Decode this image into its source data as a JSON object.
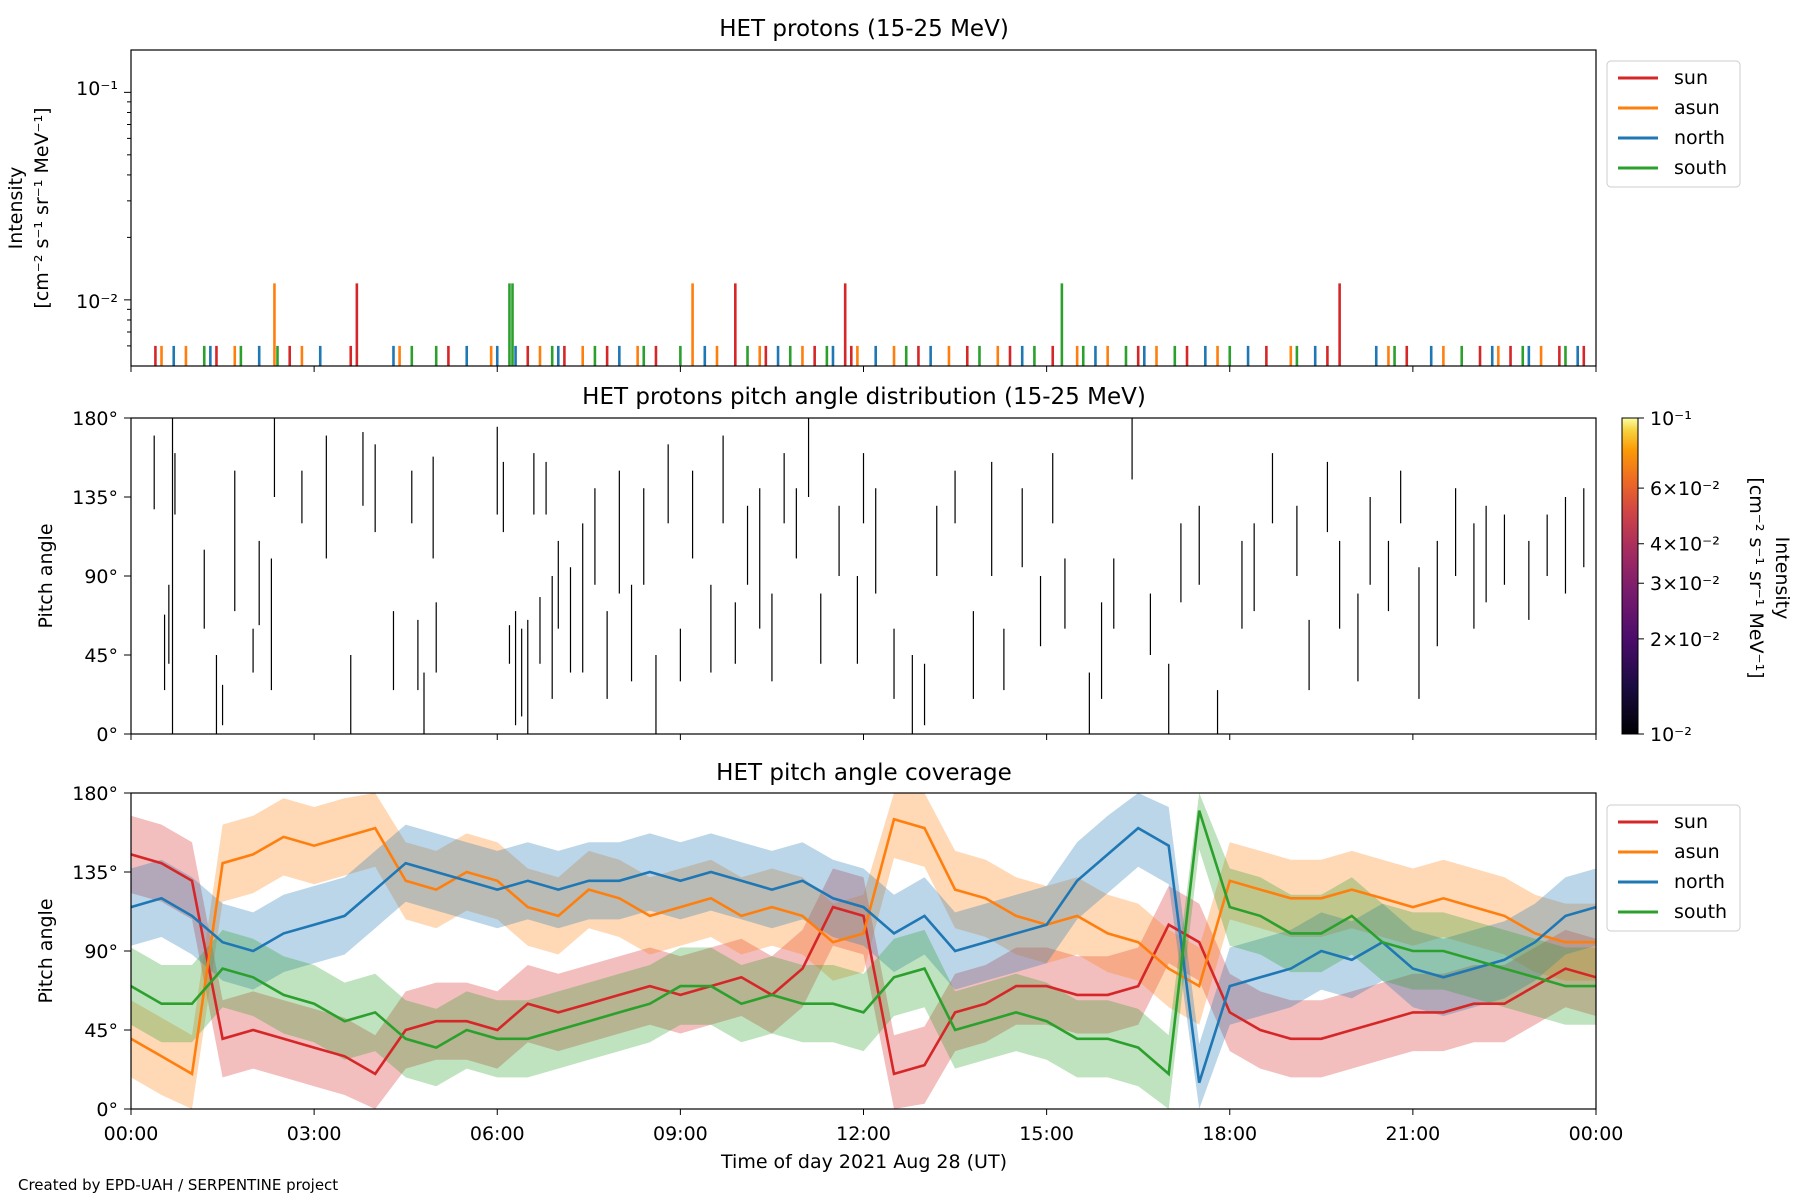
{
  "figure": {
    "xlabel": "Time of day 2021 Aug 28 (UT)",
    "x_tick_labels": [
      "00:00",
      "03:00",
      "06:00",
      "09:00",
      "12:00",
      "15:00",
      "18:00",
      "21:00",
      "00:00"
    ],
    "credit": "Created by EPD-UAH / SERPENTINE project"
  },
  "colors": {
    "sun": "#d62728",
    "asun": "#ff7f0e",
    "north": "#1f77b4",
    "south": "#2ca02c"
  },
  "chart_data": [
    {
      "type": "bar",
      "title": "HET protons (15-25 MeV)",
      "ylabel_line1": "Intensity",
      "ylabel_line2": "[cm⁻² s⁻¹ sr⁻¹ MeV⁻¹]",
      "yscale": "log",
      "ylim": [
        0.0048,
        0.16
      ],
      "xlim_hours": [
        0,
        24
      ],
      "y_tick_labels": [
        "10⁻¹",
        "10⁻²"
      ],
      "legend": {
        "placement": "upper right outside",
        "entries": [
          "sun",
          "asun",
          "north",
          "south"
        ]
      },
      "series": [
        {
          "name": "sun",
          "times": [
            0.4,
            1.4,
            2.6,
            3.6,
            3.7,
            5.2,
            6.5,
            7.1,
            7.8,
            8.6,
            9.9,
            10.4,
            11.2,
            11.7,
            11.8,
            12.9,
            13.7,
            14.4,
            15.1,
            16.5,
            17.3,
            18.6,
            19.6,
            19.8,
            20.9,
            22.1,
            22.6,
            23.4,
            23.8
          ],
          "values": [
            0.006,
            0.006,
            0.006,
            0.006,
            0.012,
            0.006,
            0.006,
            0.006,
            0.006,
            0.006,
            0.012,
            0.006,
            0.006,
            0.012,
            0.006,
            0.006,
            0.006,
            0.006,
            0.006,
            0.006,
            0.006,
            0.006,
            0.006,
            0.012,
            0.006,
            0.006,
            0.006,
            0.006,
            0.006
          ]
        },
        {
          "name": "asun",
          "times": [
            0.5,
            0.9,
            1.7,
            2.35,
            2.8,
            4.4,
            5.9,
            6.7,
            7.4,
            8.3,
            9.2,
            9.6,
            10.3,
            11.0,
            11.9,
            12.5,
            13.4,
            14.2,
            15.5,
            16.0,
            16.8,
            17.8,
            19.0,
            20.6,
            21.5,
            22.4,
            23.1
          ],
          "values": [
            0.006,
            0.006,
            0.006,
            0.012,
            0.006,
            0.006,
            0.006,
            0.006,
            0.006,
            0.006,
            0.012,
            0.006,
            0.006,
            0.006,
            0.006,
            0.006,
            0.006,
            0.006,
            0.006,
            0.006,
            0.006,
            0.006,
            0.006,
            0.006,
            0.006,
            0.006,
            0.006
          ]
        },
        {
          "name": "north",
          "times": [
            0.7,
            1.3,
            2.1,
            3.1,
            4.3,
            5.5,
            6.0,
            6.3,
            7.0,
            8.0,
            9.4,
            10.6,
            11.5,
            12.2,
            13.1,
            14.6,
            15.8,
            16.6,
            17.6,
            18.3,
            19.4,
            20.4,
            21.3,
            22.3,
            22.9,
            23.7
          ],
          "values": [
            0.006,
            0.006,
            0.006,
            0.006,
            0.006,
            0.006,
            0.006,
            0.006,
            0.006,
            0.006,
            0.006,
            0.006,
            0.006,
            0.006,
            0.006,
            0.006,
            0.006,
            0.006,
            0.006,
            0.006,
            0.006,
            0.006,
            0.006,
            0.006,
            0.006,
            0.006
          ]
        },
        {
          "name": "south",
          "times": [
            1.2,
            1.8,
            2.4,
            4.6,
            5.0,
            6.2,
            6.25,
            6.9,
            7.6,
            8.4,
            9.0,
            10.1,
            10.8,
            11.4,
            12.7,
            13.9,
            14.8,
            15.25,
            15.6,
            16.3,
            17.1,
            18.0,
            19.1,
            20.7,
            21.8,
            22.8,
            23.5
          ],
          "values": [
            0.006,
            0.006,
            0.006,
            0.006,
            0.006,
            0.012,
            0.012,
            0.006,
            0.006,
            0.006,
            0.006,
            0.006,
            0.006,
            0.006,
            0.006,
            0.006,
            0.006,
            0.012,
            0.006,
            0.006,
            0.006,
            0.006,
            0.006,
            0.006,
            0.006,
            0.006,
            0.006
          ]
        }
      ]
    },
    {
      "type": "heatmap",
      "title": "HET protons pitch angle distribution (15-25 MeV)",
      "ylabel": "Pitch angle",
      "ylim": [
        0,
        180
      ],
      "y_tick_labels": [
        "0°",
        "45°",
        "90°",
        "135°",
        "180°"
      ],
      "colorbar": {
        "label_line1": "Intensity",
        "label_line2": "[cm⁻² s⁻¹ sr⁻¹ MeV⁻¹]",
        "scale": "log",
        "range": [
          0.01,
          0.1
        ],
        "tick_labels": [
          "10⁻¹",
          "6×10⁻²",
          "4×10⁻²",
          "3×10⁻²",
          "2×10⁻²",
          "10⁻²"
        ],
        "tick_values": [
          0.1,
          0.06,
          0.04,
          0.03,
          0.02,
          0.01
        ]
      },
      "segments": [
        [
          0.38,
          128,
          170
        ],
        [
          0.55,
          25,
          68
        ],
        [
          0.62,
          40,
          85
        ],
        [
          0.68,
          0,
          180
        ],
        [
          0.72,
          125,
          160
        ],
        [
          1.2,
          60,
          105
        ],
        [
          1.4,
          0,
          45
        ],
        [
          1.5,
          5,
          28
        ],
        [
          1.7,
          70,
          150
        ],
        [
          2.0,
          35,
          60
        ],
        [
          2.1,
          62,
          110
        ],
        [
          2.3,
          25,
          100
        ],
        [
          2.35,
          135,
          180
        ],
        [
          2.8,
          120,
          150
        ],
        [
          3.2,
          100,
          170
        ],
        [
          3.6,
          0,
          45
        ],
        [
          3.8,
          130,
          172
        ],
        [
          4.0,
          115,
          165
        ],
        [
          4.3,
          25,
          70
        ],
        [
          4.6,
          120,
          150
        ],
        [
          4.7,
          25,
          65
        ],
        [
          4.8,
          0,
          35
        ],
        [
          4.95,
          100,
          158
        ],
        [
          5.0,
          35,
          75
        ],
        [
          6.0,
          125,
          175
        ],
        [
          6.1,
          115,
          155
        ],
        [
          6.2,
          40,
          62
        ],
        [
          6.3,
          5,
          70
        ],
        [
          6.4,
          10,
          60
        ],
        [
          6.5,
          0,
          65
        ],
        [
          6.6,
          125,
          160
        ],
        [
          6.7,
          40,
          78
        ],
        [
          6.8,
          125,
          155
        ],
        [
          6.9,
          20,
          90
        ],
        [
          7.0,
          60,
          110
        ],
        [
          7.2,
          35,
          95
        ],
        [
          7.4,
          35,
          120
        ],
        [
          7.6,
          85,
          140
        ],
        [
          7.8,
          20,
          70
        ],
        [
          8.0,
          80,
          150
        ],
        [
          8.2,
          30,
          85
        ],
        [
          8.4,
          85,
          140
        ],
        [
          8.6,
          0,
          45
        ],
        [
          8.8,
          120,
          165
        ],
        [
          9.0,
          30,
          60
        ],
        [
          9.2,
          100,
          150
        ],
        [
          9.5,
          35,
          85
        ],
        [
          9.7,
          120,
          170
        ],
        [
          9.9,
          40,
          75
        ],
        [
          10.1,
          85,
          130
        ],
        [
          10.3,
          60,
          140
        ],
        [
          10.5,
          30,
          80
        ],
        [
          10.7,
          120,
          160
        ],
        [
          10.9,
          100,
          140
        ],
        [
          11.1,
          135,
          180
        ],
        [
          11.3,
          40,
          80
        ],
        [
          11.6,
          90,
          130
        ],
        [
          11.9,
          40,
          90
        ],
        [
          12.0,
          120,
          160
        ],
        [
          12.2,
          80,
          140
        ],
        [
          12.5,
          20,
          60
        ],
        [
          12.8,
          0,
          45
        ],
        [
          13.0,
          5,
          40
        ],
        [
          13.2,
          90,
          130
        ],
        [
          13.5,
          120,
          150
        ],
        [
          13.8,
          20,
          70
        ],
        [
          14.1,
          90,
          155
        ],
        [
          14.3,
          25,
          60
        ],
        [
          14.6,
          95,
          140
        ],
        [
          14.9,
          50,
          90
        ],
        [
          15.1,
          120,
          160
        ],
        [
          15.3,
          60,
          100
        ],
        [
          15.7,
          0,
          35
        ],
        [
          15.9,
          20,
          75
        ],
        [
          16.1,
          60,
          100
        ],
        [
          16.4,
          145,
          180
        ],
        [
          16.7,
          45,
          80
        ],
        [
          17.0,
          0,
          40
        ],
        [
          17.2,
          75,
          120
        ],
        [
          17.5,
          85,
          130
        ],
        [
          17.8,
          0,
          25
        ],
        [
          18.2,
          60,
          110
        ],
        [
          18.4,
          70,
          120
        ],
        [
          18.7,
          120,
          160
        ],
        [
          19.1,
          90,
          130
        ],
        [
          19.3,
          25,
          65
        ],
        [
          19.6,
          115,
          155
        ],
        [
          19.8,
          60,
          110
        ],
        [
          20.1,
          30,
          80
        ],
        [
          20.3,
          85,
          135
        ],
        [
          20.6,
          70,
          110
        ],
        [
          20.8,
          120,
          150
        ],
        [
          21.1,
          20,
          95
        ],
        [
          21.4,
          50,
          110
        ],
        [
          21.7,
          90,
          140
        ],
        [
          22.0,
          60,
          120
        ],
        [
          22.2,
          75,
          130
        ],
        [
          22.5,
          85,
          125
        ],
        [
          22.9,
          65,
          110
        ],
        [
          23.2,
          90,
          125
        ],
        [
          23.5,
          80,
          135
        ],
        [
          23.8,
          95,
          140
        ]
      ]
    },
    {
      "type": "line",
      "title": "HET pitch angle coverage",
      "ylabel": "Pitch angle",
      "ylim": [
        0,
        180
      ],
      "y_tick_labels": [
        "0°",
        "45°",
        "90°",
        "135°",
        "180°"
      ],
      "legend": {
        "placement": "upper right outside",
        "entries": [
          "sun",
          "asun",
          "north",
          "south"
        ]
      },
      "x": [
        0,
        0.5,
        1,
        1.5,
        2,
        2.5,
        3,
        3.5,
        4,
        4.5,
        5,
        5.5,
        6,
        6.5,
        7,
        7.5,
        8,
        8.5,
        9,
        9.5,
        10,
        10.5,
        11,
        11.5,
        12,
        12.5,
        13,
        13.5,
        14,
        14.5,
        15,
        15.5,
        16,
        16.5,
        17,
        17.5,
        18,
        18.5,
        19,
        19.5,
        20,
        20.5,
        21,
        21.5,
        22,
        22.5,
        23,
        23.5,
        24
      ],
      "series": [
        {
          "name": "sun",
          "values": [
            145,
            140,
            130,
            40,
            45,
            40,
            35,
            30,
            20,
            45,
            50,
            50,
            45,
            60,
            55,
            60,
            65,
            70,
            65,
            70,
            75,
            65,
            80,
            115,
            110,
            20,
            25,
            55,
            60,
            70,
            70,
            65,
            65,
            70,
            105,
            95,
            55,
            45,
            40,
            40,
            45,
            50,
            55,
            55,
            60,
            60,
            70,
            80,
            75
          ]
        },
        {
          "name": "asun",
          "values": [
            40,
            30,
            20,
            140,
            145,
            155,
            150,
            155,
            160,
            130,
            125,
            135,
            130,
            115,
            110,
            125,
            120,
            110,
            115,
            120,
            110,
            115,
            110,
            95,
            100,
            165,
            160,
            125,
            120,
            110,
            105,
            110,
            100,
            95,
            80,
            70,
            130,
            125,
            120,
            120,
            125,
            120,
            115,
            120,
            115,
            110,
            100,
            95,
            95
          ]
        },
        {
          "name": "north",
          "values": [
            115,
            120,
            110,
            95,
            90,
            100,
            105,
            110,
            125,
            140,
            135,
            130,
            125,
            130,
            125,
            130,
            130,
            135,
            130,
            135,
            130,
            125,
            130,
            120,
            115,
            100,
            110,
            90,
            95,
            100,
            105,
            130,
            145,
            160,
            150,
            15,
            70,
            75,
            80,
            90,
            85,
            95,
            80,
            75,
            80,
            85,
            95,
            110,
            115
          ]
        },
        {
          "name": "south",
          "values": [
            70,
            60,
            60,
            80,
            75,
            65,
            60,
            50,
            55,
            40,
            35,
            45,
            40,
            40,
            45,
            50,
            55,
            60,
            70,
            70,
            60,
            65,
            60,
            60,
            55,
            75,
            80,
            45,
            50,
            55,
            50,
            40,
            40,
            35,
            20,
            170,
            115,
            110,
            100,
            100,
            110,
            95,
            90,
            90,
            85,
            80,
            75,
            70,
            70
          ]
        }
      ],
      "band_halfwidth": 22
    }
  ]
}
